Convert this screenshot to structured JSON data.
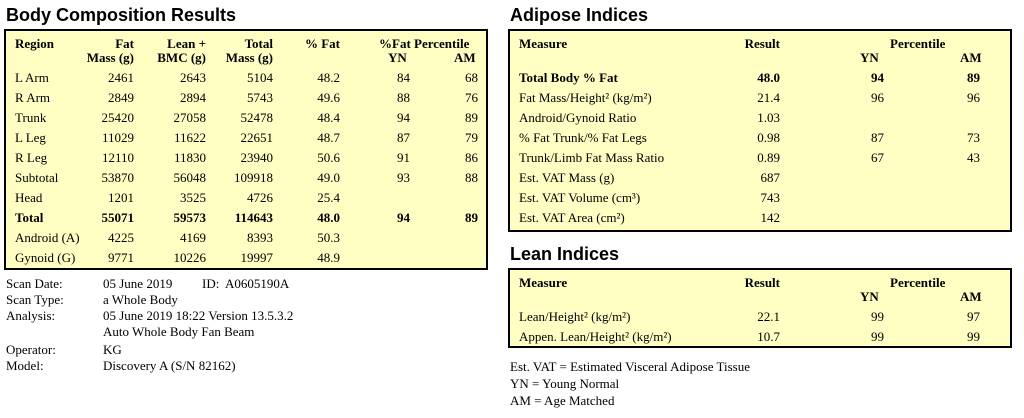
{
  "body_comp": {
    "title": "Body Composition Results",
    "headers": {
      "region": "Region",
      "fat": "Fat\nMass (g)",
      "lean": "Lean +\nBMC (g)",
      "total": "Total\nMass (g)",
      "pfat": "% Fat",
      "pct": "%Fat Percentile",
      "yn": "YN",
      "am": "AM"
    },
    "rows": [
      {
        "region": "L Arm",
        "fat": "2461",
        "lean": "2643",
        "total": "5104",
        "pfat": "48.2",
        "yn": "84",
        "am": "68"
      },
      {
        "region": "R Arm",
        "fat": "2849",
        "lean": "2894",
        "total": "5743",
        "pfat": "49.6",
        "yn": "88",
        "am": "76"
      },
      {
        "region": "Trunk",
        "fat": "25420",
        "lean": "27058",
        "total": "52478",
        "pfat": "48.4",
        "yn": "94",
        "am": "89"
      },
      {
        "region": "L Leg",
        "fat": "11029",
        "lean": "11622",
        "total": "22651",
        "pfat": "48.7",
        "yn": "87",
        "am": "79"
      },
      {
        "region": "R Leg",
        "fat": "12110",
        "lean": "11830",
        "total": "23940",
        "pfat": "50.6",
        "yn": "91",
        "am": "86"
      },
      {
        "region": "Subtotal",
        "fat": "53870",
        "lean": "56048",
        "total": "109918",
        "pfat": "49.0",
        "yn": "93",
        "am": "88"
      },
      {
        "region": "Head",
        "fat": "1201",
        "lean": "3525",
        "total": "4726",
        "pfat": "25.4",
        "yn": "",
        "am": ""
      },
      {
        "region": "Total",
        "fat": "55071",
        "lean": "59573",
        "total": "114643",
        "pfat": "48.0",
        "yn": "94",
        "am": "89"
      },
      {
        "region": "Android (A)",
        "fat": "4225",
        "lean": "4169",
        "total": "8393",
        "pfat": "50.3",
        "yn": "",
        "am": ""
      },
      {
        "region": "Gynoid (G)",
        "fat": "9771",
        "lean": "10226",
        "total": "19997",
        "pfat": "48.9",
        "yn": "",
        "am": ""
      }
    ]
  },
  "scan_info": {
    "scan_date_label": "Scan Date:",
    "scan_date": "05 June 2019",
    "id_label": "ID:",
    "id": "A0605190A",
    "scan_type_label": "Scan Type:",
    "scan_type": "a Whole Body",
    "analysis_label": "Analysis:",
    "analysis_1": "05 June 2019 18:22 Version 13.5.3.2",
    "analysis_2": "Auto Whole Body Fan Beam",
    "operator_label": "Operator:",
    "operator": "KG",
    "model_label": "Model:",
    "model": "Discovery A (S/N 82162)"
  },
  "adipose": {
    "title": "Adipose Indices",
    "headers": {
      "measure": "Measure",
      "result": "Result",
      "percentile": "Percentile",
      "yn": "YN",
      "am": "AM"
    },
    "rows": [
      {
        "measure": "Total Body % Fat",
        "result": "48.0",
        "yn": "94",
        "am": "89"
      },
      {
        "measure": "Fat Mass/Height² (kg/m²)",
        "result": "21.4",
        "yn": "96",
        "am": "96"
      },
      {
        "measure": "Android/Gynoid Ratio",
        "result": "1.03",
        "yn": "",
        "am": ""
      },
      {
        "measure": "% Fat Trunk/% Fat Legs",
        "result": "0.98",
        "yn": "87",
        "am": "73"
      },
      {
        "measure": "Trunk/Limb Fat Mass Ratio",
        "result": "0.89",
        "yn": "67",
        "am": "43"
      },
      {
        "measure": "Est. VAT Mass (g)",
        "result": "687",
        "yn": "",
        "am": ""
      },
      {
        "measure": "Est. VAT Volume (cm³)",
        "result": "743",
        "yn": "",
        "am": ""
      },
      {
        "measure": "Est. VAT Area (cm²)",
        "result": "142",
        "yn": "",
        "am": ""
      }
    ]
  },
  "lean": {
    "title": "Lean Indices",
    "headers": {
      "measure": "Measure",
      "result": "Result",
      "percentile": "Percentile",
      "yn": "YN",
      "am": "AM"
    },
    "rows": [
      {
        "measure": "Lean/Height² (kg/m²)",
        "result": "22.1",
        "yn": "99",
        "am": "97"
      },
      {
        "measure": "Appen. Lean/Height² (kg/m²)",
        "result": "10.7",
        "yn": "99",
        "am": "99"
      }
    ]
  },
  "footnotes": [
    "Est. VAT = Estimated Visceral Adipose Tissue",
    "YN = Young Normal",
    "AM = Age Matched"
  ]
}
